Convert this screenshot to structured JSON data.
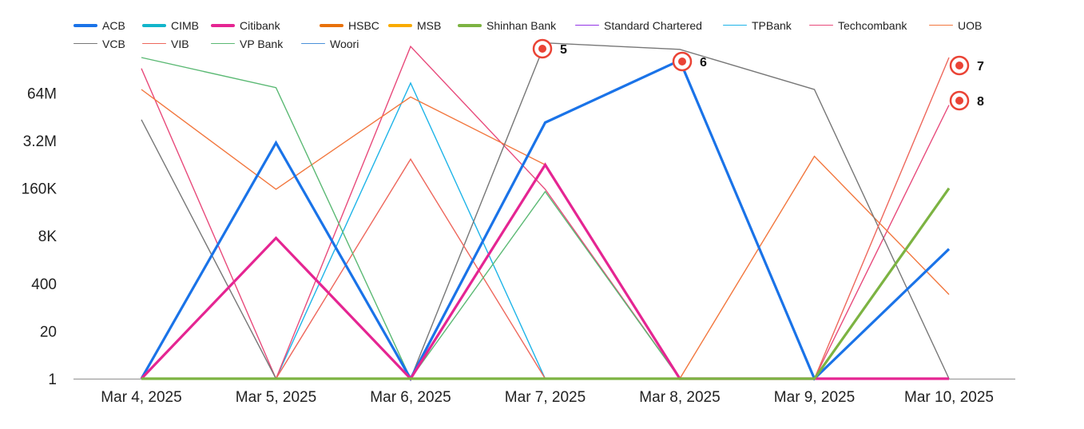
{
  "chart_data": {
    "type": "line",
    "title": "",
    "xlabel": "",
    "ylabel": "",
    "y_scale": "log",
    "categories": [
      "Mar 4, 2025",
      "Mar 5, 2025",
      "Mar 6, 2025",
      "Mar 7, 2025",
      "Mar 8, 2025",
      "Mar 9, 2025",
      "Mar 10, 2025"
    ],
    "y_ticks": [
      {
        "value": 1,
        "label": "1"
      },
      {
        "value": 20,
        "label": "20"
      },
      {
        "value": 400,
        "label": "400"
      },
      {
        "value": 8000,
        "label": "8K"
      },
      {
        "value": 160000,
        "label": "160K"
      },
      {
        "value": 3200000,
        "label": "3.2M"
      },
      {
        "value": 64000000,
        "label": "64M"
      }
    ],
    "legend_position": "top",
    "series": [
      {
        "name": "ACB",
        "color": "#1a73e8",
        "bold": true,
        "values": [
          null,
          2800000,
          null,
          10000000,
          500000000,
          null,
          3500
        ]
      },
      {
        "name": "CIMB",
        "color": "#12b5cb",
        "bold": true,
        "values": [
          null,
          null,
          null,
          null,
          null,
          null,
          null
        ]
      },
      {
        "name": "Citibank",
        "color": "#e52592",
        "bold": true,
        "values": [
          null,
          7000,
          null,
          700000,
          null,
          null,
          null
        ]
      },
      {
        "name": "HSBC",
        "color": "#e8710a",
        "bold": true,
        "values": [
          null,
          null,
          null,
          null,
          null,
          null,
          null
        ]
      },
      {
        "name": "MSB",
        "color": "#f9ab00",
        "bold": true,
        "values": [
          null,
          null,
          null,
          null,
          null,
          null,
          null
        ]
      },
      {
        "name": "Shinhan Bank",
        "color": "#7cb342",
        "bold": true,
        "values": [
          null,
          null,
          null,
          null,
          null,
          null,
          160000
        ]
      },
      {
        "name": "Standard Chartered",
        "color": "#9334e6",
        "bold": false,
        "values": [
          null,
          null,
          null,
          null,
          null,
          null,
          null
        ]
      },
      {
        "name": "TPBank",
        "color": "#1eb4e8",
        "bold": false,
        "values": [
          null,
          null,
          120000000,
          null,
          null,
          null,
          null
        ]
      },
      {
        "name": "Techcombank",
        "color": "#e84a7b",
        "bold": false,
        "values": [
          300000000,
          null,
          1200000000,
          150000,
          null,
          null,
          30000000
        ]
      },
      {
        "name": "UOB",
        "color": "#f2773e",
        "bold": false,
        "values": [
          80000000,
          150000,
          50000000,
          700000,
          null,
          1200000,
          200
        ]
      },
      {
        "name": "VCB",
        "color": "#777777",
        "bold": false,
        "values": [
          12000000,
          null,
          null,
          1500000000,
          1000000000,
          80000000,
          null
        ]
      },
      {
        "name": "VIB",
        "color": "#ee675c",
        "bold": false,
        "values": [
          null,
          null,
          1000000,
          null,
          null,
          null,
          600000000
        ]
      },
      {
        "name": "VP Bank",
        "color": "#5bb974",
        "bold": false,
        "values": [
          600000000,
          90000000,
          null,
          130000,
          null,
          null,
          null
        ]
      },
      {
        "name": "Woori",
        "color": "#4a90d9",
        "bold": false,
        "values": [
          null,
          null,
          null,
          null,
          null,
          null,
          null
        ]
      }
    ],
    "annotations": [
      {
        "label": "5",
        "series": "VCB",
        "category": "Mar 7, 2025"
      },
      {
        "label": "6",
        "series": "ACB",
        "category": "Mar 8, 2025"
      },
      {
        "label": "7",
        "series": "VIB",
        "category": "Mar 10, 2025"
      },
      {
        "label": "8",
        "series": "Techcombank",
        "category": "Mar 10, 2025"
      }
    ],
    "colors": {
      "axis": "#9e9e9e",
      "annotation": "#ea4335",
      "text": "#222222"
    }
  }
}
